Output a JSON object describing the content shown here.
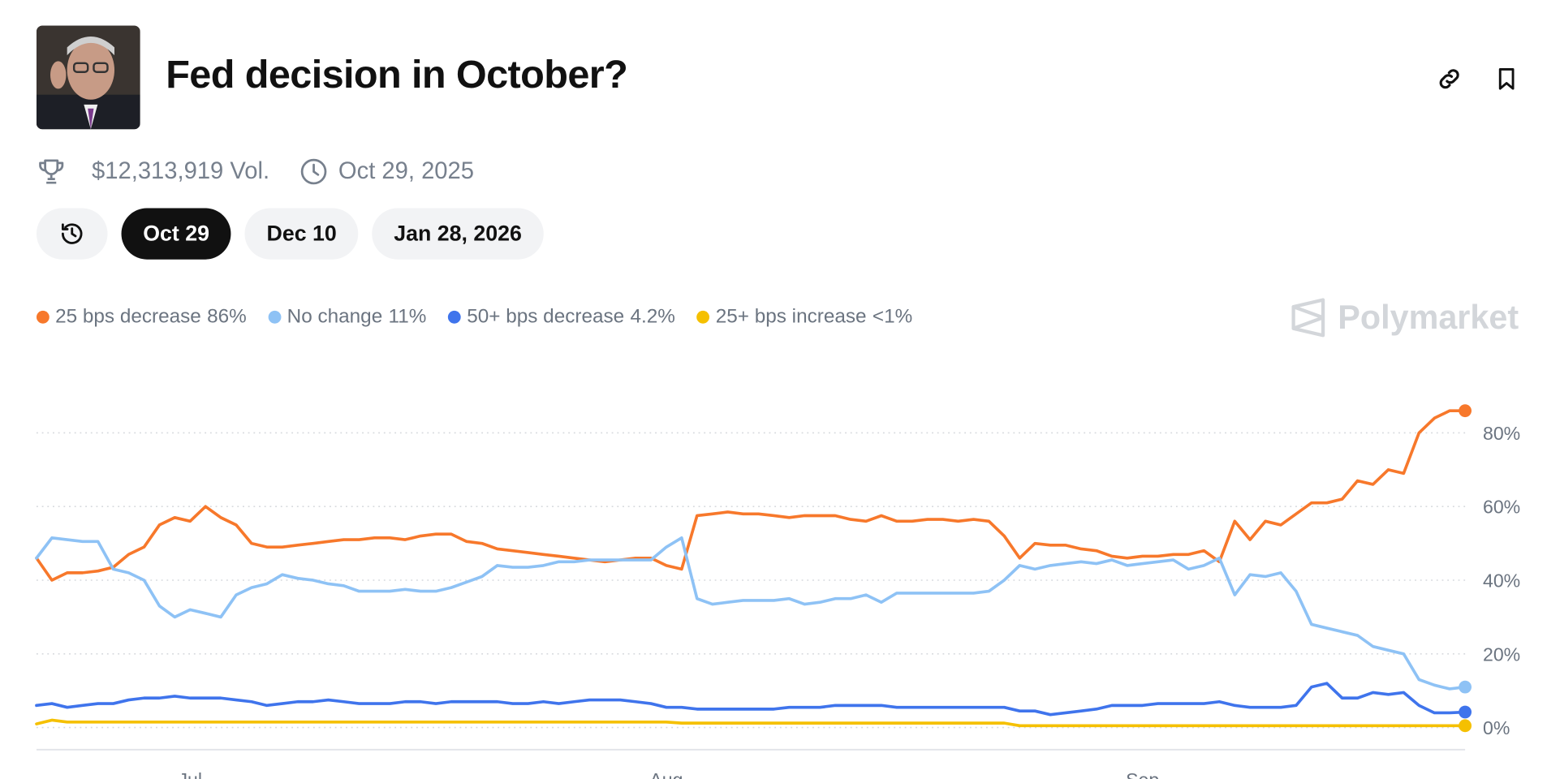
{
  "header": {
    "title": "Fed decision in October?",
    "volume": "$12,313,919 Vol.",
    "end_date": "Oct 29, 2025"
  },
  "tabs": [
    "Oct 29",
    "Dec 10",
    "Jan 28, 2026"
  ],
  "active_tab": 0,
  "brand": "Polymarket",
  "chart_data": {
    "type": "line",
    "categories": [
      null,
      null,
      null,
      null,
      null,
      null,
      null,
      null,
      null,
      null,
      "Jul",
      null,
      null,
      null,
      null,
      null,
      null,
      null,
      null,
      null,
      null,
      null,
      null,
      null,
      null,
      null,
      null,
      null,
      null,
      null,
      null,
      null,
      null,
      null,
      null,
      null,
      null,
      null,
      null,
      null,
      null,
      "Aug",
      null,
      null,
      null,
      null,
      null,
      null,
      null,
      null,
      null,
      null,
      null,
      null,
      null,
      null,
      null,
      null,
      null,
      null,
      null,
      null,
      null,
      null,
      null,
      null,
      null,
      null,
      null,
      null,
      null,
      null,
      "Sep",
      null,
      null,
      null,
      null,
      null,
      null,
      null,
      null,
      null,
      null,
      null,
      null,
      null,
      null,
      null,
      null,
      null,
      null,
      null,
      null,
      null
    ],
    "series": [
      {
        "name": "25 bps decrease",
        "legend_label": "86%",
        "color": "#f7782b",
        "values": [
          46,
          40,
          42,
          42,
          42.5,
          43.5,
          47,
          49,
          55,
          57,
          56,
          60,
          57,
          55,
          50,
          49,
          49,
          49.5,
          50,
          50.5,
          51,
          51,
          51.5,
          51.5,
          51,
          52,
          52.5,
          52.5,
          50.5,
          50,
          48.5,
          48,
          47.5,
          47,
          46.5,
          46,
          45.5,
          45,
          45.5,
          46,
          46,
          44,
          43,
          57.5,
          58,
          58.5,
          58,
          58,
          57.5,
          57,
          57.5,
          57.5,
          57.5,
          56.5,
          56,
          57.5,
          56,
          56,
          56.5,
          56.5,
          56,
          56.5,
          56,
          52,
          46,
          50,
          49.5,
          49.5,
          48.5,
          48,
          46.5,
          46,
          46.5,
          46.5,
          47,
          47,
          48,
          45,
          56,
          51,
          56,
          55,
          58,
          61,
          61,
          62,
          67,
          66,
          70,
          69,
          80,
          84,
          86,
          86
        ]
      },
      {
        "name": "No change",
        "legend_label": "11%",
        "color": "#8ec2f5",
        "values": [
          46,
          51.5,
          51,
          50.5,
          50.5,
          43,
          42,
          40,
          33,
          30,
          32,
          31,
          30,
          36,
          38,
          39,
          41.5,
          40.5,
          40,
          39,
          38.5,
          37,
          37,
          37,
          37.5,
          37,
          37,
          38,
          39.5,
          41,
          44,
          43.5,
          43.5,
          44,
          45,
          45,
          45.5,
          45.5,
          45.5,
          45.5,
          45.5,
          49,
          51.5,
          35,
          33.5,
          34,
          34.5,
          34.5,
          34.5,
          35,
          33.5,
          34,
          35,
          35,
          36,
          34,
          36.5,
          36.5,
          36.5,
          36.5,
          36.5,
          36.5,
          37,
          40,
          44,
          43,
          44,
          44.5,
          45,
          44.5,
          45.5,
          44,
          44.5,
          45,
          45.5,
          43,
          44,
          46,
          36,
          41.5,
          41,
          42,
          37,
          28,
          27,
          26,
          25,
          22,
          21,
          20,
          13,
          11.5,
          10.5,
          11
        ]
      },
      {
        "name": "50+ bps decrease",
        "legend_label": "4.2%",
        "color": "#3f74ec",
        "values": [
          6,
          6.5,
          5.5,
          6,
          6.5,
          6.5,
          7.5,
          8,
          8,
          8.5,
          8,
          8,
          8,
          7.5,
          7,
          6,
          6.5,
          7,
          7,
          7.5,
          7,
          6.5,
          6.5,
          6.5,
          7,
          7,
          6.5,
          7,
          7,
          7,
          7,
          6.5,
          6.5,
          7,
          6.5,
          7,
          7.5,
          7.5,
          7.5,
          7,
          6.5,
          5.5,
          5.5,
          5,
          5,
          5,
          5,
          5,
          5,
          5.5,
          5.5,
          5.5,
          6,
          6,
          6,
          6,
          5.5,
          5.5,
          5.5,
          5.5,
          5.5,
          5.5,
          5.5,
          5.5,
          4.5,
          4.5,
          3.5,
          4,
          4.5,
          5,
          6,
          6,
          6,
          6.5,
          6.5,
          6.5,
          6.5,
          7,
          6,
          5.5,
          5.5,
          5.5,
          6,
          11,
          12,
          8,
          8,
          9.5,
          9,
          9.5,
          6,
          4,
          4,
          4.2
        ]
      },
      {
        "name": "25+ bps increase",
        "legend_label": "<1%",
        "color": "#f5c000",
        "values": [
          1,
          2,
          1.5,
          1.5,
          1.5,
          1.5,
          1.5,
          1.5,
          1.5,
          1.5,
          1.5,
          1.5,
          1.5,
          1.5,
          1.5,
          1.5,
          1.5,
          1.5,
          1.5,
          1.5,
          1.5,
          1.5,
          1.5,
          1.5,
          1.5,
          1.5,
          1.5,
          1.5,
          1.5,
          1.5,
          1.5,
          1.5,
          1.5,
          1.5,
          1.5,
          1.5,
          1.5,
          1.5,
          1.5,
          1.5,
          1.5,
          1.5,
          1.2,
          1.2,
          1.2,
          1.2,
          1.2,
          1.2,
          1.2,
          1.2,
          1.2,
          1.2,
          1.2,
          1.2,
          1.2,
          1.2,
          1.2,
          1.2,
          1.2,
          1.2,
          1.2,
          1.2,
          1.2,
          1.2,
          0.5,
          0.5,
          0.5,
          0.5,
          0.5,
          0.5,
          0.5,
          0.5,
          0.5,
          0.5,
          0.5,
          0.5,
          0.5,
          0.5,
          0.5,
          0.5,
          0.5,
          0.5,
          0.5,
          0.5,
          0.5,
          0.5,
          0.5,
          0.5,
          0.5,
          0.5,
          0.5,
          0.5,
          0.5,
          0.5
        ]
      }
    ],
    "ylim": [
      -6,
      92
    ],
    "yticks": [
      {
        "value": 0,
        "label": "0%"
      },
      {
        "value": 20,
        "label": "20%"
      },
      {
        "value": 40,
        "label": "40%"
      },
      {
        "value": 60,
        "label": "60%"
      },
      {
        "value": 80,
        "label": "80%"
      }
    ],
    "grid": true,
    "end_markers": true
  }
}
